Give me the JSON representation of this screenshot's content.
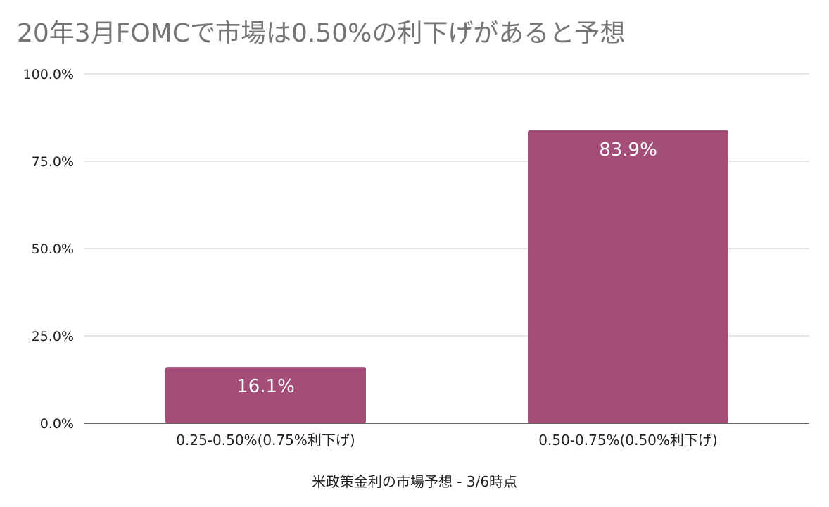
{
  "chart_data": {
    "type": "bar",
    "title": "20年3月FOMCで市場は0.50%の利下げがあると予想",
    "xlabel": "米政策金利の市場予想 - 3/6時点",
    "ylabel": "",
    "categories": [
      "0.25-0.50%(0.75%利下げ)",
      "0.50-0.75%(0.50%利下げ)"
    ],
    "values": [
      16.1,
      83.9
    ],
    "data_labels": [
      "16.1%",
      "83.9%"
    ],
    "ylim": [
      0,
      100
    ],
    "yticks": [
      0,
      25,
      50,
      75,
      100
    ],
    "ytick_labels": [
      "0.0%",
      "25.0%",
      "50.0%",
      "75.0%",
      "100.0%"
    ],
    "grid": true,
    "legend": "none",
    "colors": {
      "bar": "#a34d78",
      "grid": "#cccccc",
      "axis": "#333333",
      "title": "#757575",
      "text": "#222222",
      "data_label": "#ffffff"
    }
  }
}
